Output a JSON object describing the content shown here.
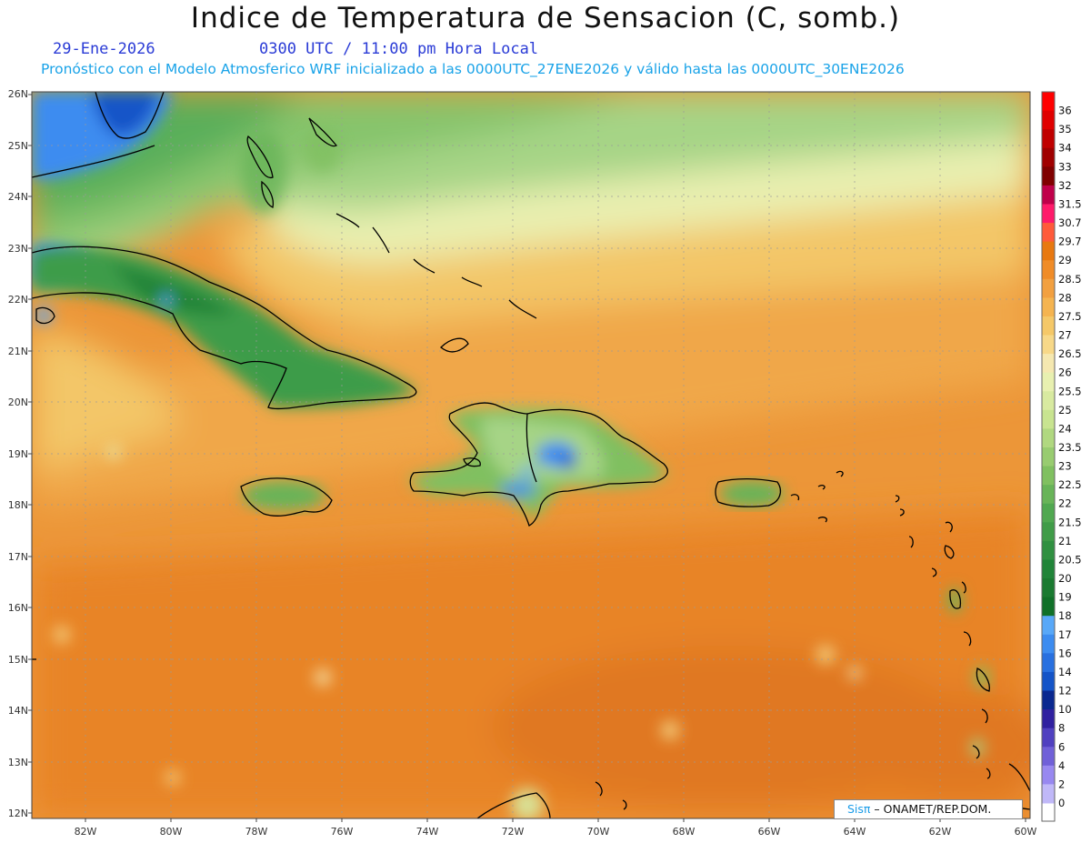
{
  "title": "Indice de Temperatura de Sensacion (C, somb.)",
  "date": "29-Ene-2026",
  "time": "0300 UTC / 11:00 pm Hora Local",
  "subtitle": "Pronóstico con el Modelo Atmosferico WRF inicializado a las 0000UTC_27ENE2026 y válido hasta las  0000UTC_30ENE2026",
  "credit": {
    "brand": "Sisπ",
    "org": " – ONAMET/REP.DOM."
  },
  "map": {
    "lon_labels": [
      "82W",
      "80W",
      "78W",
      "76W",
      "74W",
      "72W",
      "70W",
      "68W",
      "66W",
      "64W",
      "62W",
      "60W"
    ],
    "lat_labels": [
      "26N",
      "25N",
      "24N",
      "23N",
      "22N",
      "21N",
      "20N",
      "19N",
      "18N",
      "17N",
      "16N",
      "15N",
      "14N",
      "13N",
      "12N"
    ],
    "lon_range": [
      -83.2,
      -60
    ],
    "lat_range": [
      12,
      26
    ]
  },
  "colorbar": {
    "labels": [
      "36",
      "35",
      "34",
      "33",
      "32",
      "31.5",
      "30.7",
      "29.7",
      "29",
      "28.5",
      "28",
      "27.5",
      "27",
      "26.5",
      "26",
      "25.5",
      "25",
      "24",
      "23.5",
      "23",
      "22.5",
      "22",
      "21.5",
      "21",
      "20.5",
      "20",
      "19",
      "18",
      "17",
      "16",
      "14",
      "12",
      "10",
      "8",
      "6",
      "4",
      "2",
      "0"
    ],
    "colors": [
      "#ff0000",
      "#e00000",
      "#c00000",
      "#a00000",
      "#800000",
      "#c0004a",
      "#ff1a6a",
      "#ff5a3a",
      "#e87810",
      "#f08c28",
      "#f2a040",
      "#f5b450",
      "#f5c868",
      "#f7d888",
      "#f5e8b0",
      "#e8f0b0",
      "#d8eaa0",
      "#c8e490",
      "#b0d880",
      "#98cc70",
      "#80c060",
      "#68b458",
      "#50a850",
      "#409c48",
      "#309040",
      "#208438",
      "#1a7a30",
      "#107028",
      "#58a8f8",
      "#3c8cf0",
      "#2870e0",
      "#1454c8",
      "#0a2890",
      "#3020a0",
      "#5040c0",
      "#7060d8",
      "#9888f0",
      "#c0b8f8"
    ]
  }
}
